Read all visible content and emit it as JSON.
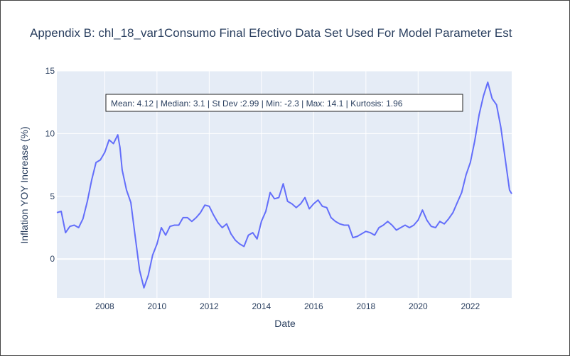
{
  "chart_data": {
    "type": "line",
    "title": "Appendix B: chl_18_var1Consumo Final Efectivo Data Set Used For Model Parameter Est",
    "xlabel": "Date",
    "ylabel": "Inflation YOY Increase (%)",
    "xlim": [
      "2006-03",
      "2023-08"
    ],
    "ylim": [
      -3.1,
      15
    ],
    "x_ticks": [
      "2008",
      "2010",
      "2012",
      "2014",
      "2016",
      "2018",
      "2020",
      "2022"
    ],
    "y_ticks": [
      0,
      5,
      10,
      15
    ],
    "grid": true,
    "line_color": "#636efa",
    "annotation": "Mean: 4.12 | Median: 3.1 | St Dev :2.99 | Min: -2.3 | Max: 14.1 | Kurtosis: 1.96",
    "series": [
      {
        "x": [
          "2006-03",
          "2006-05",
          "2006-07",
          "2006-09",
          "2006-11",
          "2007-01",
          "2007-03",
          "2007-05",
          "2007-07",
          "2007-09",
          "2007-11",
          "2008-01",
          "2008-03",
          "2008-05",
          "2008-07",
          "2008-08",
          "2008-09",
          "2008-11",
          "2009-01",
          "2009-03",
          "2009-05",
          "2009-07",
          "2009-09",
          "2009-11",
          "2010-01",
          "2010-03",
          "2010-05",
          "2010-07",
          "2010-09",
          "2010-11",
          "2011-01",
          "2011-03",
          "2011-05",
          "2011-07",
          "2011-09",
          "2011-11",
          "2012-01",
          "2012-03",
          "2012-05",
          "2012-07",
          "2012-09",
          "2012-11",
          "2013-01",
          "2013-03",
          "2013-05",
          "2013-07",
          "2013-09",
          "2013-11",
          "2014-01",
          "2014-03",
          "2014-05",
          "2014-07",
          "2014-09",
          "2014-11",
          "2015-01",
          "2015-03",
          "2015-05",
          "2015-07",
          "2015-09",
          "2015-11",
          "2016-01",
          "2016-03",
          "2016-05",
          "2016-07",
          "2016-09",
          "2016-11",
          "2017-01",
          "2017-03",
          "2017-05",
          "2017-07",
          "2017-09",
          "2017-11",
          "2018-01",
          "2018-03",
          "2018-05",
          "2018-07",
          "2018-09",
          "2018-11",
          "2019-01",
          "2019-03",
          "2019-05",
          "2019-07",
          "2019-09",
          "2019-11",
          "2020-01",
          "2020-03",
          "2020-05",
          "2020-07",
          "2020-09",
          "2020-11",
          "2021-01",
          "2021-03",
          "2021-05",
          "2021-07",
          "2021-09",
          "2021-11",
          "2022-01",
          "2022-03",
          "2022-05",
          "2022-07",
          "2022-09",
          "2022-11",
          "2023-01",
          "2023-03",
          "2023-05",
          "2023-07",
          "2023-08"
        ],
        "values": [
          3.7,
          3.8,
          2.1,
          2.6,
          2.7,
          2.5,
          3.2,
          4.6,
          6.3,
          7.7,
          7.9,
          8.5,
          9.5,
          9.2,
          9.9,
          8.9,
          7.1,
          5.5,
          4.5,
          1.8,
          -0.9,
          -2.3,
          -1.3,
          0.3,
          1.2,
          2.5,
          1.9,
          2.6,
          2.7,
          2.7,
          3.3,
          3.3,
          3.0,
          3.3,
          3.7,
          4.3,
          4.2,
          3.5,
          2.9,
          2.5,
          2.8,
          2.0,
          1.5,
          1.2,
          1.0,
          1.9,
          2.1,
          1.6,
          3.0,
          3.8,
          5.3,
          4.8,
          4.9,
          6.0,
          4.6,
          4.4,
          4.1,
          4.4,
          4.9,
          4.0,
          4.4,
          4.7,
          4.2,
          4.1,
          3.3,
          3.0,
          2.8,
          2.7,
          2.7,
          1.7,
          1.8,
          2.0,
          2.2,
          2.1,
          1.9,
          2.5,
          2.7,
          3.0,
          2.7,
          2.3,
          2.5,
          2.7,
          2.5,
          2.7,
          3.1,
          3.9,
          3.1,
          2.6,
          2.5,
          3.0,
          2.8,
          3.2,
          3.7,
          4.5,
          5.3,
          6.7,
          7.7,
          9.4,
          11.5,
          13.0,
          14.1,
          12.8,
          12.3,
          10.5,
          8.0,
          5.5,
          5.2
        ]
      }
    ]
  }
}
